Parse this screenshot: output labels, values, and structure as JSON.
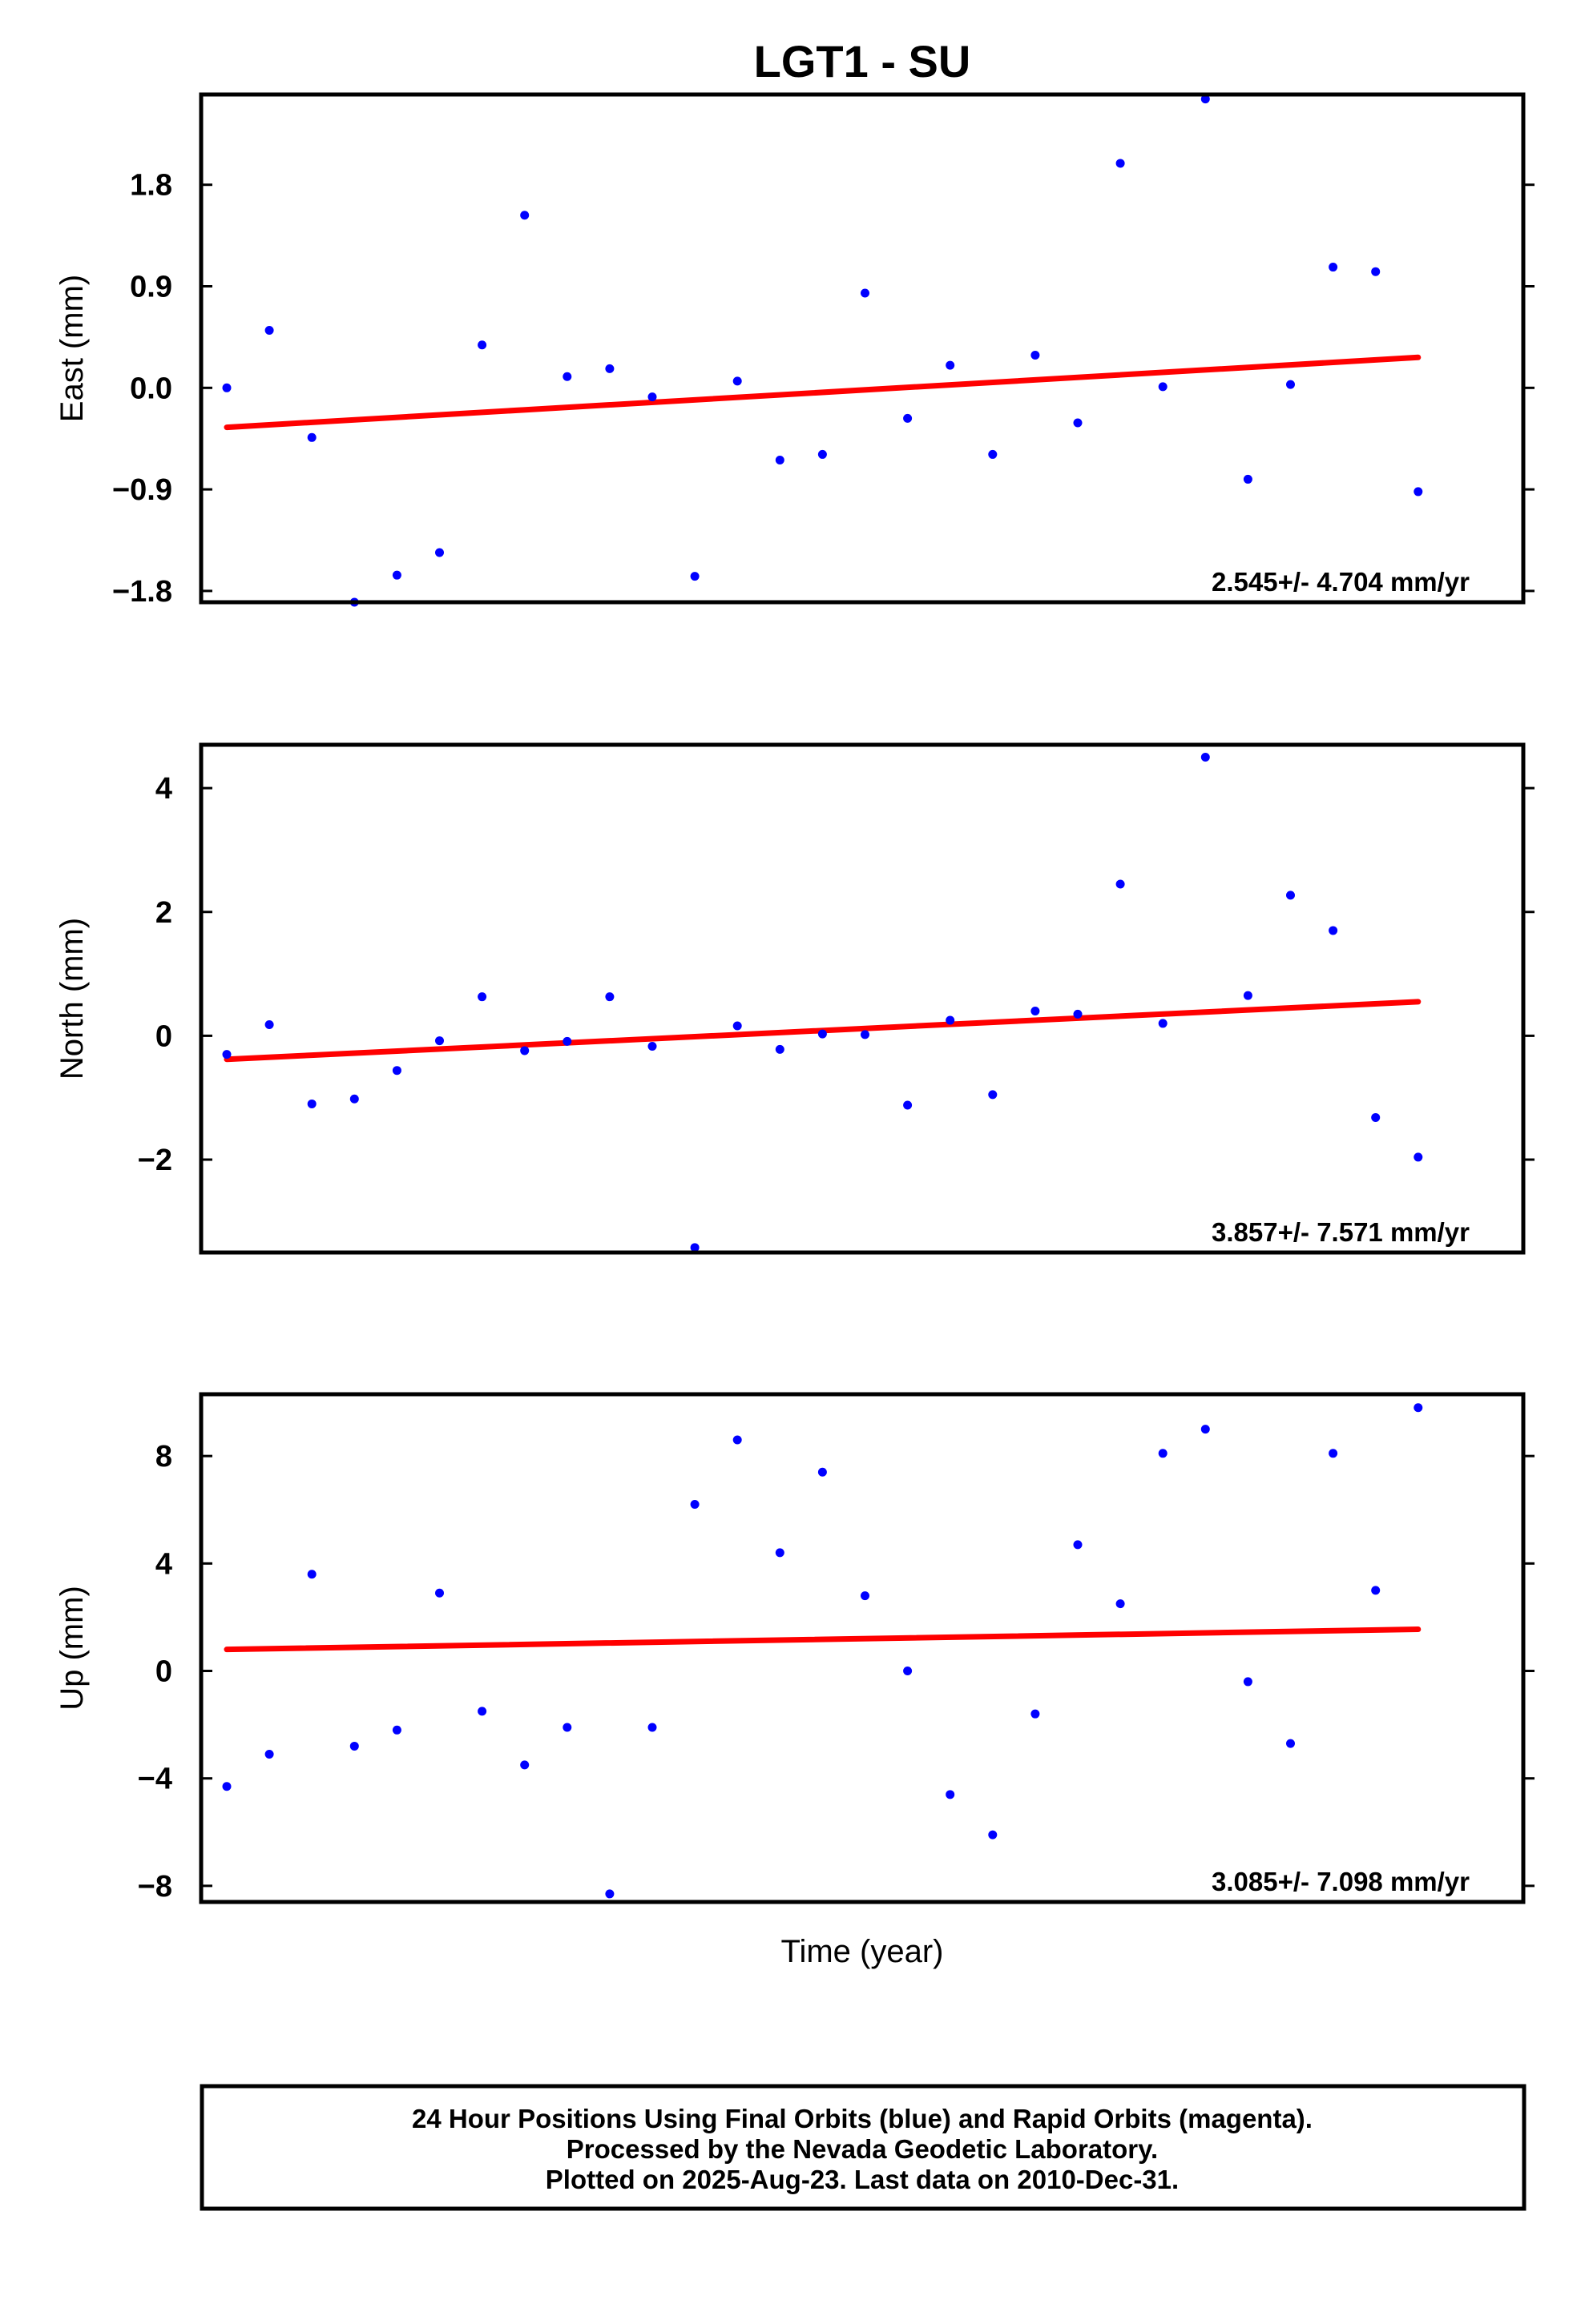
{
  "title": "LGT1 - SU",
  "xlabel": "Time (year)",
  "footer": [
    "24 Hour Positions Using Final Orbits (blue) and Rapid Orbits (magenta).",
    "Processed by the Nevada Geodetic Laboratory.",
    "Plotted on 2025-Aug-23. Last data on 2010-Dec-31."
  ],
  "colors": {
    "points": "#0000ff",
    "trend": "#ff0000",
    "frame": "#000000"
  },
  "chart_data": [
    {
      "type": "scatter",
      "ylabel": "East (mm)",
      "ylim": [
        -1.9,
        2.6
      ],
      "yticks": [
        -1.8,
        -0.9,
        0.0,
        0.9,
        1.8
      ],
      "ytick_labels": [
        "−1.8",
        "−0.9",
        "0.0",
        "0.9",
        "1.8"
      ],
      "rate_label": "2.545+/- 4.704 mm/yr",
      "series": [
        {
          "values": [
            0.0,
            0.51,
            -0.44,
            -1.9,
            -1.66,
            -1.46,
            0.38,
            1.53,
            0.1,
            0.17,
            -0.08,
            -1.67,
            0.06,
            -0.64,
            -0.59,
            0.84,
            -0.27,
            0.2,
            -0.59,
            0.29,
            -0.31,
            1.99,
            0.01,
            2.56,
            -0.81,
            0.03,
            1.07,
            1.03,
            -0.92
          ]
        }
      ],
      "trend": [
        -0.35,
        0.27
      ]
    },
    {
      "type": "scatter",
      "ylabel": "North (mm)",
      "ylim": [
        -3.5,
        4.7
      ],
      "yticks": [
        -2,
        0,
        2,
        4
      ],
      "ytick_labels": [
        "−2",
        "0",
        "2",
        "4"
      ],
      "rate_label": "3.857+/- 7.571 mm/yr",
      "series": [
        {
          "values": [
            -0.3,
            0.18,
            -1.1,
            -1.02,
            -0.56,
            -0.08,
            0.63,
            -0.24,
            -0.09,
            0.63,
            -0.17,
            -3.42,
            0.16,
            -0.22,
            0.03,
            0.02,
            -1.12,
            0.25,
            -0.95,
            0.4,
            0.35,
            2.45,
            0.2,
            4.5,
            0.65,
            2.27,
            1.7,
            -1.32,
            -1.96
          ]
        }
      ],
      "trend": [
        -0.38,
        0.55
      ]
    },
    {
      "type": "scatter",
      "ylabel": "Up (mm)",
      "ylim": [
        -8.6,
        10.3
      ],
      "yticks": [
        -8,
        -4,
        0,
        4,
        8
      ],
      "ytick_labels": [
        "−8",
        "−4",
        "0",
        "4",
        "8"
      ],
      "rate_label": "3.085+/- 7.098 mm/yr",
      "series": [
        {
          "values": [
            -4.3,
            -3.1,
            3.6,
            -2.8,
            -2.2,
            2.9,
            -1.5,
            -3.5,
            -2.1,
            -8.3,
            -2.1,
            6.2,
            8.6,
            4.4,
            7.4,
            2.8,
            0.0,
            -4.6,
            -6.1,
            -1.6,
            4.7,
            2.5,
            8.1,
            9.0,
            -0.4,
            -2.7,
            8.1,
            3.0,
            9.8
          ]
        }
      ],
      "trend": [
        0.8,
        1.55
      ]
    }
  ]
}
